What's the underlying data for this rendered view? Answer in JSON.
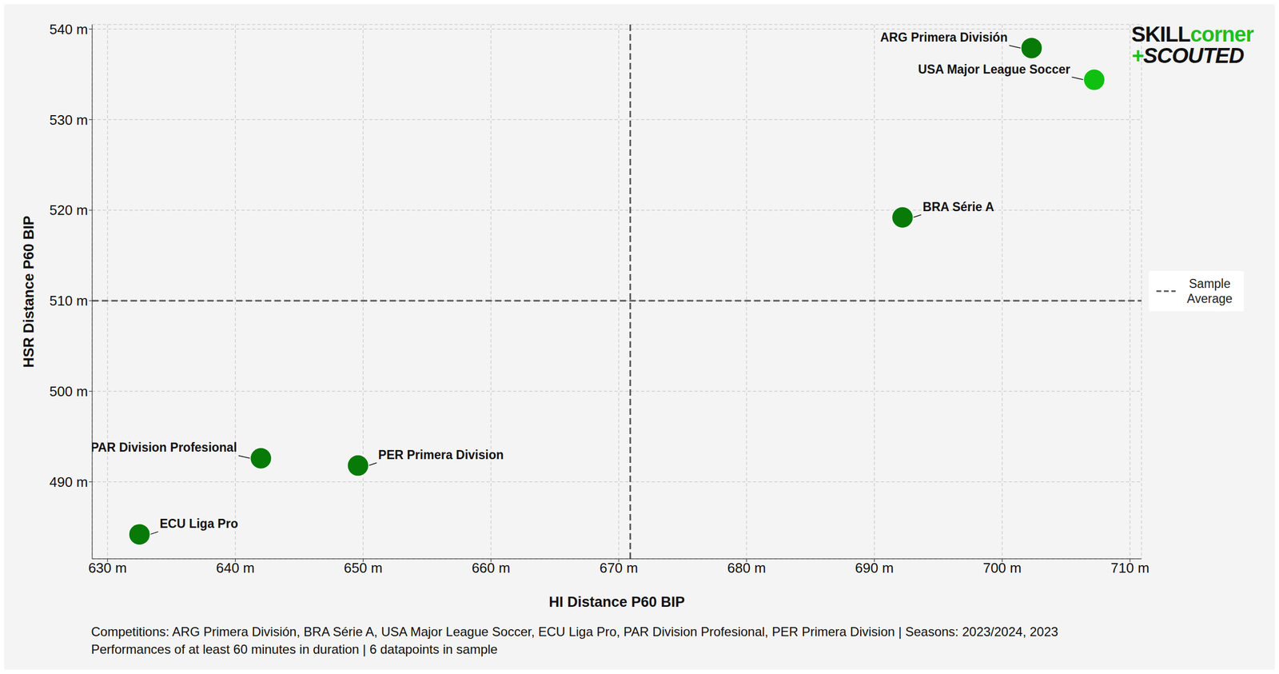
{
  "chart_data": {
    "type": "scatter",
    "xlabel": "HI Distance P60 BIP",
    "ylabel": "HSR Distance P60 BIP",
    "series": [
      {
        "name": "ARG Primera División",
        "color": "#087a08",
        "x": 702.3,
        "y": 537.9
      },
      {
        "name": "USA Major League Soccer",
        "color": "#10c010",
        "x": 707.2,
        "y": 534.4
      },
      {
        "name": "BRA Série A",
        "color": "#087a08",
        "x": 692.2,
        "y": 519.2
      },
      {
        "name": "PAR Division Profesional",
        "color": "#087a08",
        "x": 642.0,
        "y": 492.6
      },
      {
        "name": "PER Primera Division",
        "color": "#087a08",
        "x": 649.6,
        "y": 491.8
      },
      {
        "name": "ECU Liga Pro",
        "color": "#087a08",
        "x": 632.5,
        "y": 484.2
      }
    ],
    "xlim": [
      628.8,
      710.9
    ],
    "ylim": [
      481.5,
      540.5
    ],
    "xticks": [
      {
        "value": 630,
        "label": "630 m"
      },
      {
        "value": 640,
        "label": "640 m"
      },
      {
        "value": 650,
        "label": "650 m"
      },
      {
        "value": 660,
        "label": "660 m"
      },
      {
        "value": 670,
        "label": "670 m"
      },
      {
        "value": 680,
        "label": "680 m"
      },
      {
        "value": 690,
        "label": "690 m"
      },
      {
        "value": 700,
        "label": "700 m"
      },
      {
        "value": 710,
        "label": "710 m"
      }
    ],
    "yticks": [
      {
        "value": 490,
        "label": "490 m"
      },
      {
        "value": 500,
        "label": "500 m"
      },
      {
        "value": 510,
        "label": "510 m"
      },
      {
        "value": 520,
        "label": "520 m"
      },
      {
        "value": 530,
        "label": "530 m"
      },
      {
        "value": 540,
        "label": "540 m"
      }
    ],
    "grid": true,
    "legend": "right",
    "reference_lines": {
      "label": "Sample Average",
      "x": 670.9,
      "y": 510.0,
      "color": "#555555",
      "line_style": "dashed"
    },
    "logo": [
      "SKILL",
      "corner",
      "+",
      "SCOUTED"
    ],
    "footnote": [
      "Competitions: ARG Primera División, BRA Série A, USA Major League Soccer, ECU Liga Pro, PAR Division Profesional, PER Primera Division | Seasons: 2023/2024, 2023",
      "Performances of at least 60 minutes in duration | 6 datapoints in sample"
    ]
  }
}
